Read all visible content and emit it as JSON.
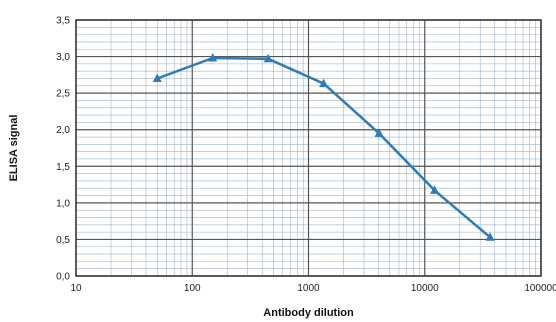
{
  "chart_data": {
    "type": "line",
    "title": "",
    "xlabel": "Antibody dilution",
    "ylabel": "ELISA signal",
    "x_scale": "log",
    "xlim": [
      10,
      100000
    ],
    "ylim": [
      0,
      3.5
    ],
    "x_ticks": [
      10,
      100,
      1000,
      10000,
      100000
    ],
    "x_tick_labels": [
      "10",
      "100",
      "1000",
      "10000",
      "100000"
    ],
    "y_ticks": [
      0,
      0.5,
      1,
      1.5,
      2,
      2.5,
      3,
      3.5
    ],
    "y_tick_labels": [
      "0,0",
      "0,5",
      "1,0",
      "1,5",
      "2,0",
      "2,5",
      "3,0",
      "3,5"
    ],
    "grid": true,
    "series": [
      {
        "x": [
          50,
          150,
          450,
          1350,
          4050,
          12150,
          36450
        ],
        "y": [
          2.7,
          2.98,
          2.97,
          2.63,
          1.95,
          1.17,
          0.53
        ]
      }
    ],
    "colors": {
      "line": "#2b7bbd",
      "marker": "#2b7bbd",
      "major_grid": "#555555",
      "minor_grid": "#9fb4c8"
    }
  }
}
